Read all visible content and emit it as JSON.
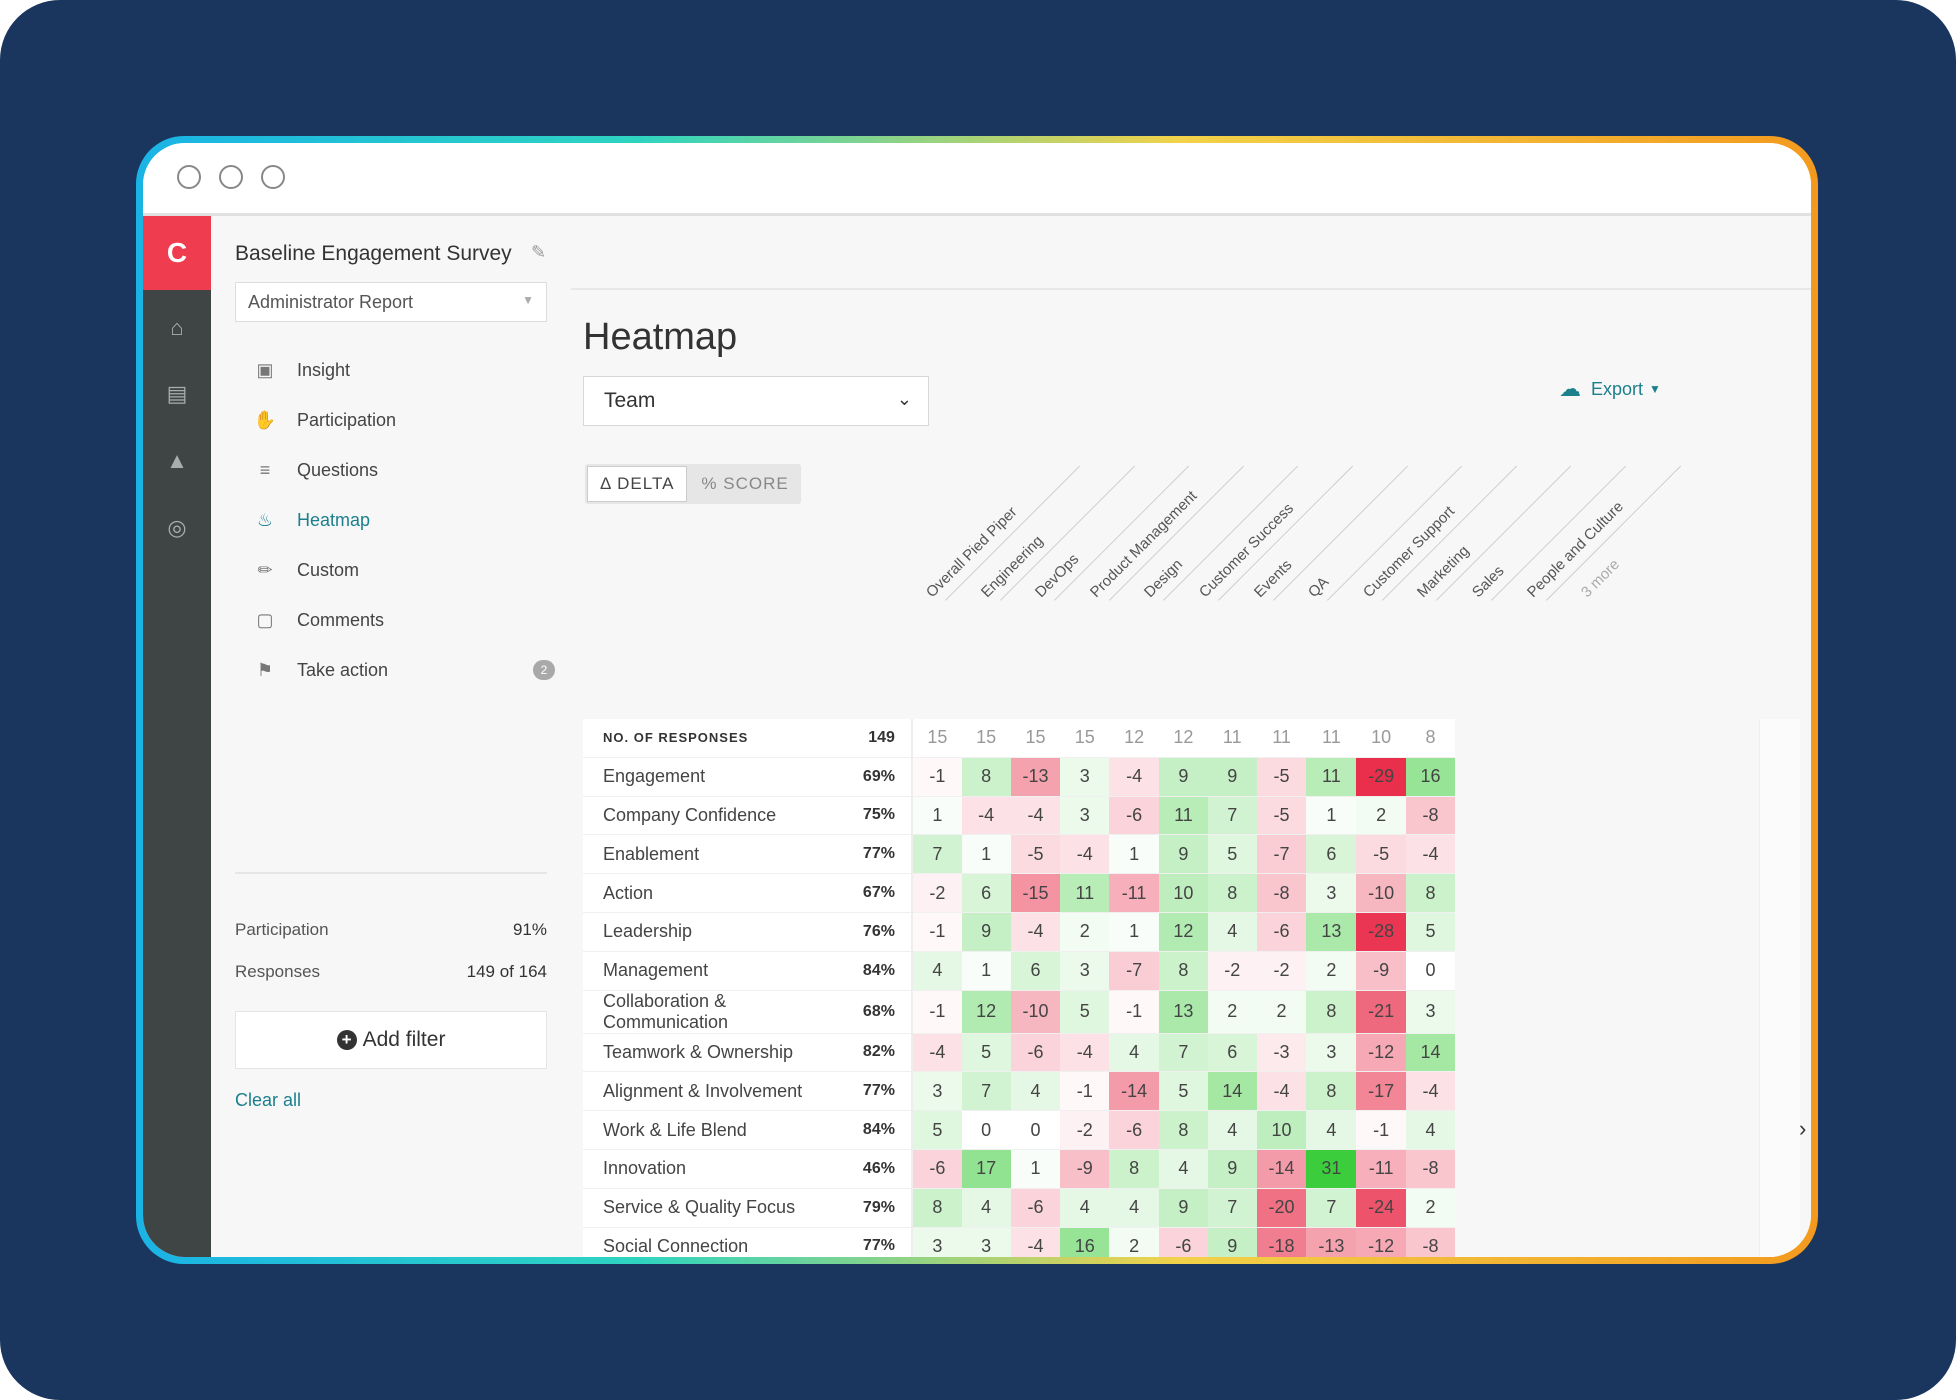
{
  "sidebar": {
    "survey_title": "Baseline Engagement Survey",
    "report_select": "Administrator Report",
    "nav": [
      {
        "label": "Insight",
        "icon": "insight-icon"
      },
      {
        "label": "Participation",
        "icon": "hand-icon"
      },
      {
        "label": "Questions",
        "icon": "list-icon"
      },
      {
        "label": "Heatmap",
        "icon": "flame-icon"
      },
      {
        "label": "Custom",
        "icon": "pencil-icon"
      },
      {
        "label": "Comments",
        "icon": "comment-icon"
      },
      {
        "label": "Take action",
        "icon": "flag-icon",
        "badge": "2"
      }
    ],
    "active_item": "Heatmap",
    "participation_label": "Participation",
    "participation_value": "91%",
    "responses_label": "Responses",
    "responses_value": "149 of 164",
    "add_filter": "Add filter",
    "clear_all": "Clear all"
  },
  "main": {
    "title": "Heatmap",
    "group_select": "Team",
    "export": "Export",
    "toggle": {
      "delta": "Δ DELTA",
      "score": "% SCORE"
    },
    "more_label": "3 more"
  },
  "chart_data": {
    "type": "heatmap",
    "columns": [
      "Overall Pied Piper",
      "Engineering",
      "DevOps",
      "Product Management",
      "Design",
      "Customer Success",
      "Events",
      "QA",
      "Customer Support",
      "Marketing",
      "Sales",
      "People and Culture"
    ],
    "responses_label": "NO. OF RESPONSES",
    "responses_total": "149",
    "responses": [
      15,
      15,
      15,
      15,
      12,
      12,
      11,
      11,
      11,
      10,
      8
    ],
    "rows": [
      {
        "label": "Engagement",
        "score": "69%",
        "values": [
          -1,
          8,
          -13,
          3,
          -4,
          9,
          9,
          -5,
          11,
          -29,
          16
        ]
      },
      {
        "label": "Company Confidence",
        "score": "75%",
        "values": [
          1,
          -4,
          -4,
          3,
          -6,
          11,
          7,
          -5,
          1,
          2,
          -8
        ]
      },
      {
        "label": "Enablement",
        "score": "77%",
        "values": [
          7,
          1,
          -5,
          -4,
          1,
          9,
          5,
          -7,
          6,
          -5,
          -4
        ]
      },
      {
        "label": "Action",
        "score": "67%",
        "values": [
          -2,
          6,
          -15,
          11,
          -11,
          10,
          8,
          -8,
          3,
          -10,
          8
        ]
      },
      {
        "label": "Leadership",
        "score": "76%",
        "values": [
          -1,
          9,
          -4,
          2,
          1,
          12,
          4,
          -6,
          13,
          -28,
          5
        ]
      },
      {
        "label": "Management",
        "score": "84%",
        "values": [
          4,
          1,
          6,
          3,
          -7,
          8,
          -2,
          -2,
          2,
          -9,
          0
        ]
      },
      {
        "label": "Collaboration & Communication",
        "score": "68%",
        "values": [
          -1,
          12,
          -10,
          5,
          -1,
          13,
          2,
          2,
          8,
          -21,
          3
        ]
      },
      {
        "label": "Teamwork & Ownership",
        "score": "82%",
        "values": [
          -4,
          5,
          -6,
          -4,
          4,
          7,
          6,
          -3,
          3,
          -12,
          14
        ]
      },
      {
        "label": "Alignment & Involvement",
        "score": "77%",
        "values": [
          3,
          7,
          4,
          -1,
          -14,
          5,
          14,
          -4,
          8,
          -17,
          -4
        ]
      },
      {
        "label": "Work & Life Blend",
        "score": "84%",
        "values": [
          5,
          0,
          0,
          -2,
          -6,
          8,
          4,
          10,
          4,
          -1,
          4
        ]
      },
      {
        "label": "Innovation",
        "score": "46%",
        "values": [
          -6,
          17,
          1,
          -9,
          8,
          4,
          9,
          -14,
          31,
          -11,
          -8
        ]
      },
      {
        "label": "Service & Quality Focus",
        "score": "79%",
        "values": [
          8,
          4,
          -6,
          4,
          4,
          9,
          7,
          -20,
          7,
          -24,
          2
        ]
      },
      {
        "label": "Social Connection",
        "score": "77%",
        "values": [
          3,
          3,
          -4,
          16,
          2,
          -6,
          9,
          -18,
          -13,
          -12,
          -8
        ]
      }
    ]
  }
}
